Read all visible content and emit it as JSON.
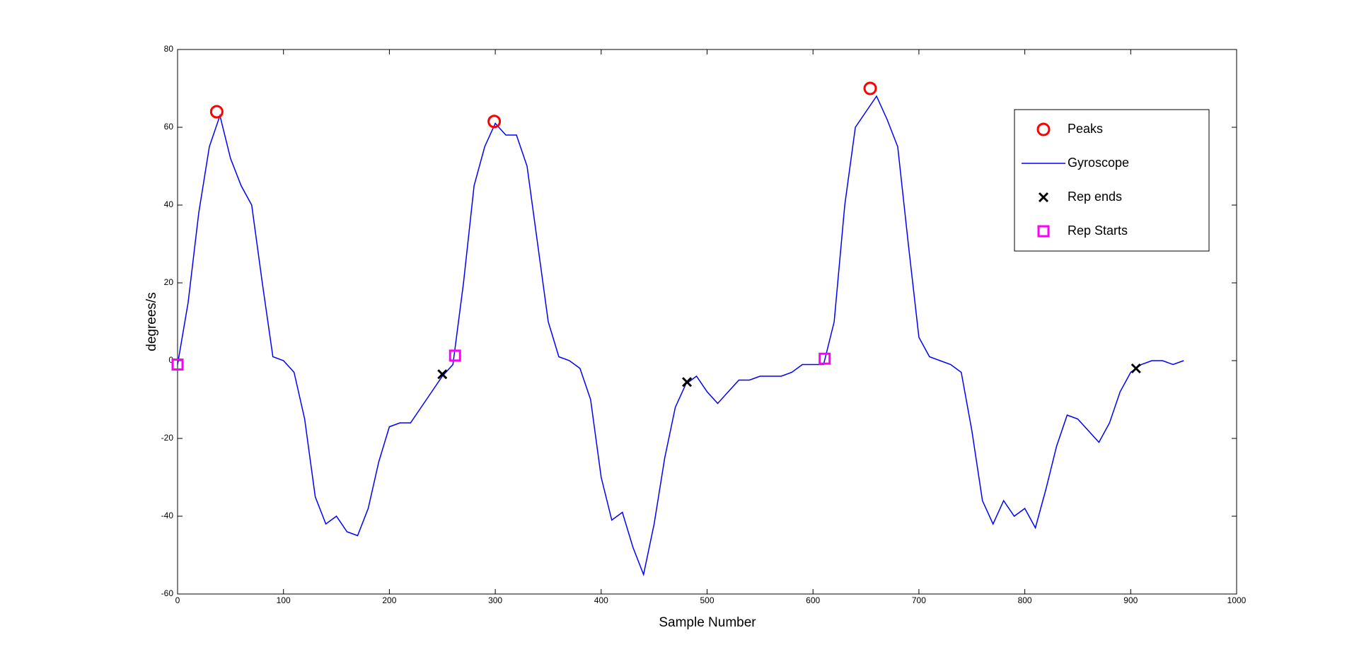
{
  "chart_data": {
    "type": "line",
    "xlabel": "Sample Number",
    "ylabel": "degrees/s",
    "xlim": [
      0,
      1000
    ],
    "ylim": [
      -60,
      80
    ],
    "xticks": [
      0,
      100,
      200,
      300,
      400,
      500,
      600,
      700,
      800,
      900,
      1000
    ],
    "yticks": [
      -60,
      -40,
      -20,
      0,
      20,
      40,
      60,
      80
    ],
    "legend": "upper right",
    "series": [
      {
        "name": "Peaks",
        "color": "#ff0000",
        "marker": "circle",
        "x": [
          37,
          299,
          654
        ],
        "values": [
          64,
          61.5,
          70
        ]
      },
      {
        "name": "Gyroscope",
        "color": "#0000ff",
        "x": [
          0,
          10,
          20,
          30,
          40,
          50,
          60,
          70,
          80,
          90,
          100,
          110,
          120,
          130,
          140,
          150,
          160,
          170,
          180,
          190,
          200,
          210,
          220,
          230,
          240,
          250,
          260,
          270,
          280,
          290,
          300,
          310,
          320,
          330,
          340,
          350,
          360,
          370,
          380,
          390,
          400,
          410,
          420,
          430,
          440,
          450,
          460,
          470,
          480,
          490,
          500,
          510,
          520,
          530,
          540,
          550,
          560,
          570,
          580,
          590,
          600,
          610,
          620,
          630,
          640,
          650,
          660,
          670,
          680,
          690,
          700,
          710,
          720,
          730,
          740,
          750,
          760,
          770,
          780,
          790,
          800,
          810,
          820,
          830,
          840,
          850,
          860,
          870,
          880,
          890,
          900,
          910,
          920,
          930,
          940,
          950
        ],
        "values": [
          -1,
          15,
          38,
          55,
          63,
          52,
          45,
          40,
          20,
          1,
          0,
          -3,
          -15,
          -35,
          -42,
          -40,
          -44,
          -45,
          -38,
          -26,
          -17,
          -16,
          -16,
          -12,
          -8,
          -4,
          -1,
          20,
          45,
          55,
          61,
          58,
          58,
          50,
          30,
          10,
          1,
          0,
          -2,
          -10,
          -30,
          -41,
          -39,
          -48,
          -55,
          -42,
          -25,
          -12,
          -6,
          -4,
          -8,
          -11,
          -8,
          -5,
          -5,
          -4,
          -4,
          -4,
          -3,
          -1,
          -1,
          -1,
          10,
          40,
          60,
          64,
          68,
          62,
          55,
          30,
          6,
          1,
          0,
          -1,
          -3,
          -18,
          -36,
          -42,
          -36,
          -40,
          -38,
          -43,
          -33,
          -22,
          -14,
          -15,
          -18,
          -21,
          -16,
          -8,
          -3,
          -1,
          0,
          0,
          -1,
          0
        ]
      },
      {
        "name": "Rep ends",
        "color": "#000000",
        "marker": "x",
        "x": [
          250,
          481,
          905
        ],
        "values": [
          -3.5,
          -5.5,
          -2
        ]
      },
      {
        "name": "Rep Starts",
        "color": "#ff00ff",
        "marker": "square",
        "x": [
          0,
          262,
          611
        ],
        "values": [
          -1,
          1.3,
          0.5
        ]
      }
    ]
  }
}
